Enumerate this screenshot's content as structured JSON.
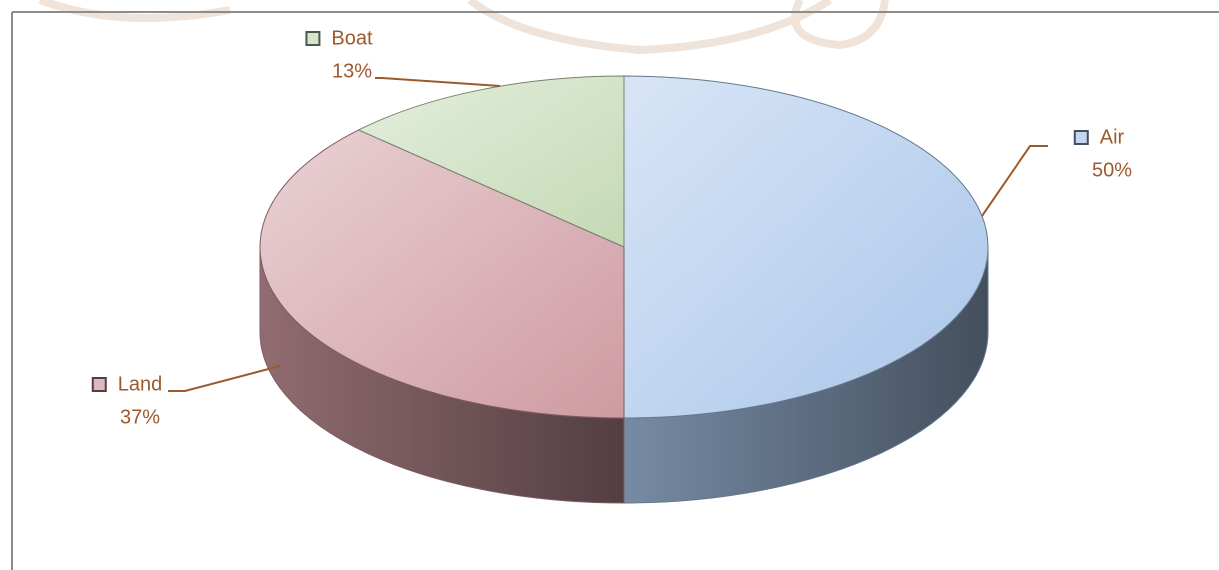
{
  "chart_data": {
    "type": "pie",
    "categories": [
      "Air",
      "Land",
      "Boat"
    ],
    "values": [
      50,
      37,
      13
    ],
    "value_labels": [
      "50%",
      "37%",
      "13%"
    ],
    "series": [
      {
        "values": [
          50,
          37,
          13
        ]
      }
    ],
    "colors": [
      "#a9c6ea",
      "#cf9aa2",
      "#c4d9b4"
    ]
  }
}
